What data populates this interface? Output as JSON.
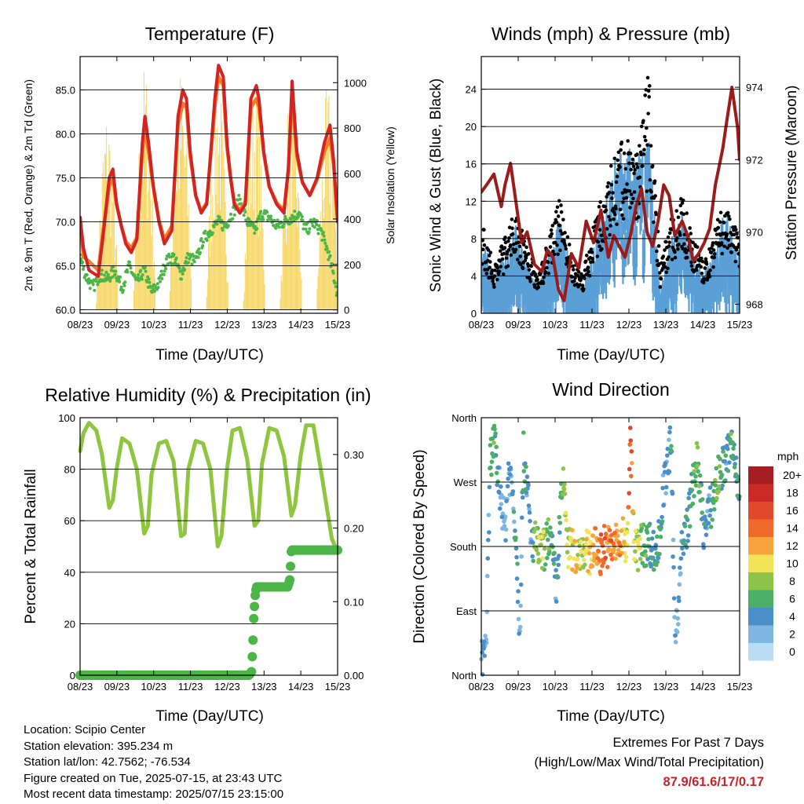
{
  "panels": {
    "temperature": {
      "title": "Temperature (F)",
      "ylabel_left": "2m & 9m T (Red, Orange) & 2m Td (Green)",
      "ylabel_right": "Solar Insolation (Yellow)",
      "xlabel": "Time (Day/UTC)"
    },
    "winds": {
      "title": "Winds (mph) & Pressure (mb)",
      "ylabel_left": "Sonic Wind & Gust (Blue, Black)",
      "ylabel_right": "Station Pressure (Maroon)",
      "xlabel": "Time (Day/UTC)"
    },
    "humidity": {
      "title": "Relative Humidity (%) & Precipitation (in)",
      "ylabel_left": "Percent & Total Rainfall",
      "xlabel": "Time (Day/UTC)"
    },
    "direction": {
      "title": "Wind Direction",
      "ylabel_left": "Direction (Colored By Speed)",
      "xlabel": "Time (Day/UTC)",
      "colorbar_title": "mph"
    }
  },
  "info": {
    "location": "Location: Scipio Center",
    "elevation": "Station elevation: 395.234 m",
    "latlon": "Station lat/lon: 42.7562; -76.534",
    "created": "Figure created on Tue, 2025-07-15, at 23:43 UTC",
    "recent": "Most recent data timestamp: 2025/07/15 23:15:00"
  },
  "extremes": {
    "line1": "Extremes For Past 7 Days",
    "line2": "(High/Low/Max Wind/Total Precipitation)",
    "values": "87.9/61.6/17/0.17"
  },
  "colors": {
    "temp_2m": "#d42323",
    "temp_9m": "#f27b26",
    "dewpoint": "#4cb548",
    "solar": "#f6d766",
    "wind": "#5aa0d6",
    "gust": "#000000",
    "pressure": "#9c1b1b",
    "rh": "#8ec63f",
    "precip": "#4cb548"
  },
  "chart_data": [
    {
      "type": "line",
      "name": "temperature",
      "x_ticks": [
        "08/23",
        "09/23",
        "10/23",
        "11/23",
        "12/23",
        "13/23",
        "14/23",
        "15/23"
      ],
      "x_range_days": [
        8.958,
        15.958
      ],
      "y_left": {
        "range": [
          59.6,
          88.8
        ],
        "ticks": [
          "60.0",
          "65.0",
          "70.0",
          "75.0",
          "80.0",
          "85.0"
        ]
      },
      "y_right": {
        "range": [
          -15,
          1115
        ],
        "ticks": [
          "0",
          "200",
          "400",
          "600",
          "800",
          "1000"
        ]
      },
      "series": [
        {
          "key": "temp_2m",
          "axis": "left",
          "x": [
            8.958,
            9.05,
            9.2,
            9.45,
            9.6,
            9.75,
            9.85,
            9.95,
            10.08,
            10.2,
            10.35,
            10.5,
            10.65,
            10.72,
            10.82,
            10.95,
            11.1,
            11.25,
            11.45,
            11.62,
            11.75,
            11.85,
            11.95,
            12.1,
            12.25,
            12.4,
            12.62,
            12.72,
            12.85,
            12.95,
            13.05,
            13.15,
            13.3,
            13.45,
            13.6,
            13.75,
            13.82,
            13.95,
            14.1,
            14.3,
            14.5,
            14.62,
            14.72,
            14.85,
            15.0,
            15.2,
            15.4,
            15.6,
            15.75,
            15.85,
            15.958
          ],
          "y": [
            70.5,
            67.0,
            64.5,
            63.8,
            69.0,
            75.0,
            76.0,
            72.0,
            69.5,
            67.5,
            66.5,
            68.0,
            79.0,
            82.0,
            79.0,
            74.0,
            70.0,
            67.5,
            69.0,
            82.0,
            85.0,
            84.0,
            78.0,
            73.0,
            71.0,
            72.0,
            84.0,
            87.8,
            86.5,
            79.0,
            75.0,
            72.0,
            71.0,
            72.0,
            84.0,
            85.5,
            84.0,
            78.0,
            74.0,
            72.0,
            71.0,
            76.0,
            86.0,
            78.0,
            74.5,
            73.0,
            75.0,
            79.0,
            81.0,
            77.0,
            70.0
          ]
        },
        {
          "key": "temp_9m",
          "axis": "left",
          "x": [
            8.958,
            9.05,
            9.2,
            9.45,
            9.6,
            9.75,
            9.85,
            9.95,
            10.08,
            10.2,
            10.35,
            10.5,
            10.65,
            10.72,
            10.82,
            10.95,
            11.1,
            11.25,
            11.45,
            11.62,
            11.75,
            11.85,
            11.95,
            12.1,
            12.25,
            12.4,
            12.62,
            12.72,
            12.85,
            12.95,
            13.05,
            13.15,
            13.3,
            13.45,
            13.6,
            13.75,
            13.82,
            13.95,
            14.1,
            14.3,
            14.5,
            14.62,
            14.72,
            14.85,
            15.0,
            15.2,
            15.4,
            15.6,
            15.75,
            15.85,
            15.958
          ],
          "y": [
            70.5,
            66.0,
            65.5,
            64.5,
            69.5,
            74.0,
            75.0,
            72.0,
            69.5,
            67.8,
            67.0,
            68.2,
            78.0,
            80.5,
            78.0,
            74.0,
            70.2,
            68.0,
            69.5,
            81.0,
            83.5,
            83.0,
            77.5,
            73.0,
            71.2,
            72.2,
            83.0,
            86.5,
            85.5,
            78.5,
            75.0,
            72.2,
            71.3,
            72.3,
            83.0,
            84.0,
            83.0,
            77.8,
            74.0,
            72.2,
            71.3,
            76.0,
            84.5,
            77.5,
            74.5,
            73.0,
            74.8,
            78.0,
            79.5,
            76.5,
            70.0
          ]
        },
        {
          "key": "dewpoint",
          "axis": "left",
          "x": [
            8.958,
            9.1,
            9.3,
            9.5,
            9.7,
            9.9,
            10.1,
            10.3,
            10.5,
            10.7,
            10.9,
            11.1,
            11.3,
            11.5,
            11.7,
            11.9,
            12.1,
            12.3,
            12.5,
            12.7,
            12.9,
            13.1,
            13.3,
            13.5,
            13.7,
            13.9,
            14.1,
            14.3,
            14.5,
            14.7,
            14.9,
            15.1,
            15.3,
            15.5,
            15.7,
            15.9,
            15.958
          ],
          "y": [
            66.0,
            64.0,
            62.5,
            64.0,
            63.5,
            64.5,
            62.5,
            65.0,
            63.0,
            64.5,
            62.0,
            63.0,
            65.5,
            66.0,
            64.0,
            66.0,
            65.5,
            68.0,
            69.0,
            70.0,
            69.5,
            71.0,
            72.5,
            70.0,
            69.0,
            71.0,
            70.5,
            69.5,
            70.0,
            70.5,
            71.0,
            69.0,
            70.0,
            69.0,
            66.5,
            63.0,
            61.5
          ]
        },
        {
          "key": "solar",
          "axis": "right",
          "description": "daily insolation cycles peaking near local noon",
          "daily_peak_days": [
            9.7,
            10.72,
            11.7,
            12.7,
            13.7,
            14.7,
            15.7
          ],
          "daily_peak_values": [
            920,
            1100,
            1090,
            1060,
            1040,
            1010,
            1000
          ]
        }
      ]
    },
    {
      "type": "scatter",
      "name": "winds",
      "x_ticks": [
        "08/23",
        "09/23",
        "10/23",
        "11/23",
        "12/23",
        "13/23",
        "14/23",
        "15/23"
      ],
      "x_range_days": [
        8.958,
        15.958
      ],
      "y_left": {
        "range": [
          0,
          27.5
        ],
        "ticks": [
          "0",
          "4",
          "8",
          "12",
          "16",
          "20",
          "24"
        ]
      },
      "y_right": {
        "range": [
          967.75,
          974.85
        ],
        "ticks": [
          "968",
          "970",
          "972",
          "974"
        ]
      },
      "series": [
        {
          "key": "wind",
          "axis": "left",
          "x": [
            9.0,
            9.3,
            9.6,
            9.9,
            10.2,
            10.5,
            10.8,
            11.1,
            11.4,
            11.7,
            12.0,
            12.3,
            12.6,
            12.9,
            13.2,
            13.5,
            13.8,
            14.1,
            14.4,
            14.7,
            15.0,
            15.3,
            15.6,
            15.9
          ],
          "y": [
            6,
            3,
            5,
            7,
            4,
            2,
            5,
            8,
            3,
            2,
            5,
            9,
            12,
            13,
            12,
            14,
            2,
            6,
            8,
            5,
            3,
            6,
            8,
            5
          ]
        },
        {
          "key": "gust",
          "axis": "left",
          "x": [
            9.0,
            9.3,
            9.6,
            9.9,
            10.2,
            10.5,
            10.8,
            11.1,
            11.4,
            11.7,
            12.0,
            12.3,
            12.6,
            12.9,
            13.2,
            13.5,
            13.8,
            14.1,
            14.4,
            14.7,
            15.0,
            15.3,
            15.6,
            15.9
          ],
          "y": [
            9,
            5,
            8,
            11,
            7,
            4,
            8,
            12,
            6,
            4,
            9,
            13,
            17,
            18,
            17,
            25,
            5,
            10,
            12,
            8,
            5,
            9,
            12,
            8
          ]
        },
        {
          "key": "pressure",
          "axis": "right",
          "x": [
            8.958,
            9.1,
            9.3,
            9.5,
            9.6,
            9.75,
            9.9,
            10.05,
            10.2,
            10.4,
            10.6,
            10.75,
            10.9,
            11.05,
            11.2,
            11.4,
            11.6,
            11.8,
            12.0,
            12.2,
            12.4,
            12.55,
            12.7,
            12.85,
            13.0,
            13.15,
            13.3,
            13.45,
            13.6,
            13.75,
            13.9,
            14.05,
            14.2,
            14.4,
            14.55,
            14.7,
            14.85,
            15.0,
            15.15,
            15.3,
            15.5,
            15.6,
            15.75,
            15.9,
            15.958
          ],
          "y": [
            971.1,
            971.3,
            971.6,
            970.7,
            971.3,
            971.9,
            970.8,
            969.7,
            970.0,
            969.1,
            968.9,
            969.5,
            969.3,
            968.4,
            968.1,
            969.4,
            969.0,
            970.3,
            969.7,
            970.6,
            969.3,
            969.9,
            969.6,
            969.3,
            969.9,
            970.7,
            971.2,
            970.0,
            969.6,
            970.3,
            971.3,
            971.0,
            969.9,
            970.3,
            969.9,
            969.2,
            969.4,
            969.7,
            970.1,
            971.3,
            972.3,
            973.0,
            974.0,
            972.9,
            972.0
          ]
        }
      ]
    },
    {
      "type": "line",
      "name": "humidity",
      "x_ticks": [
        "08/23",
        "09/23",
        "10/23",
        "11/23",
        "12/23",
        "13/23",
        "14/23",
        "15/23"
      ],
      "x_range_days": [
        8.958,
        15.958
      ],
      "y_left": {
        "range": [
          0,
          100
        ],
        "ticks": [
          "0",
          "20",
          "40",
          "60",
          "80",
          "100"
        ]
      },
      "y_right": {
        "range": [
          0,
          0.35
        ],
        "ticks": [
          "0.00",
          "0.10",
          "0.20",
          "0.30"
        ]
      },
      "series": [
        {
          "key": "rh",
          "axis": "left",
          "x": [
            8.958,
            9.05,
            9.2,
            9.4,
            9.55,
            9.75,
            9.85,
            9.95,
            10.1,
            10.3,
            10.5,
            10.7,
            10.8,
            10.9,
            11.1,
            11.3,
            11.5,
            11.7,
            11.8,
            11.9,
            12.1,
            12.3,
            12.5,
            12.7,
            12.8,
            12.95,
            13.1,
            13.3,
            13.5,
            13.7,
            13.8,
            13.9,
            14.1,
            14.3,
            14.5,
            14.7,
            14.8,
            14.95,
            15.1,
            15.3,
            15.5,
            15.7,
            15.8,
            15.958
          ],
          "y": [
            87,
            94,
            98,
            95,
            86,
            65,
            68,
            80,
            92,
            90,
            80,
            55,
            58,
            78,
            90,
            91,
            83,
            54,
            55,
            80,
            91,
            90,
            80,
            50,
            54,
            80,
            95,
            96,
            84,
            58,
            60,
            82,
            96,
            95,
            85,
            62,
            66,
            85,
            97,
            97,
            80,
            62,
            53,
            48
          ]
        },
        {
          "key": "precip",
          "axis": "right",
          "x": [
            8.958,
            9.6,
            10.5,
            11.5,
            12.5,
            13.55,
            13.62,
            13.66,
            13.68,
            13.72,
            13.75,
            13.8,
            14.2,
            14.6,
            14.66,
            14.7,
            15.0,
            15.5,
            15.958
          ],
          "y": [
            0.0,
            0.0,
            0.0,
            0.0,
            0.0,
            0.0,
            0.005,
            0.05,
            0.08,
            0.11,
            0.12,
            0.12,
            0.12,
            0.12,
            0.13,
            0.17,
            0.17,
            0.17,
            0.17
          ]
        }
      ]
    },
    {
      "type": "scatter",
      "name": "wind_direction",
      "x_ticks": [
        "08/23",
        "09/23",
        "10/23",
        "11/23",
        "12/23",
        "13/23",
        "14/23",
        "15/23"
      ],
      "x_range_days": [
        8.958,
        15.958
      ],
      "y_ticks": [
        "North",
        "East",
        "South",
        "West",
        "North"
      ],
      "y_range_deg": [
        0,
        360
      ],
      "colorbar": {
        "title": "mph",
        "labels": [
          "20+",
          "18",
          "16",
          "14",
          "12",
          "10",
          "8",
          "6",
          "4",
          "2",
          "0"
        ],
        "colors": [
          "#a51f22",
          "#cc2a27",
          "#e04a2b",
          "#f06a2b",
          "#f7a43f",
          "#f2e458",
          "#8cc34b",
          "#4caf67",
          "#4a8fc8",
          "#7eb7e2",
          "#b9def4"
        ]
      },
      "points": {
        "x": [
          9.0,
          9.1,
          9.2,
          9.3,
          9.4,
          9.5,
          9.6,
          9.7,
          9.8,
          9.9,
          10.0,
          10.1,
          10.2,
          10.3,
          10.4,
          10.5,
          10.6,
          10.7,
          10.8,
          10.9,
          11.0,
          11.1,
          11.2,
          11.3,
          11.4,
          11.5,
          11.6,
          11.7,
          11.8,
          11.9,
          12.0,
          12.1,
          12.2,
          12.3,
          12.4,
          12.5,
          12.6,
          12.7,
          12.8,
          12.9,
          13.0,
          13.1,
          13.2,
          13.3,
          13.4,
          13.5,
          13.6,
          13.7,
          13.8,
          13.9,
          14.0,
          14.1,
          14.2,
          14.3,
          14.4,
          14.5,
          14.6,
          14.7,
          14.8,
          14.9,
          15.0,
          15.1,
          15.2,
          15.3,
          15.4,
          15.5,
          15.6,
          15.7,
          15.8,
          15.9
        ],
        "direction_deg": [
          20,
          60,
          300,
          330,
          280,
          250,
          200,
          290,
          260,
          190,
          60,
          310,
          270,
          180,
          190,
          175,
          170,
          180,
          200,
          160,
          120,
          230,
          270,
          175,
          180,
          165,
          170,
          180,
          175,
          170,
          180,
          175,
          170,
          185,
          180,
          175,
          185,
          180,
          190,
          180,
          330,
          180,
          175,
          185,
          180,
          190,
          175,
          170,
          200,
          260,
          290,
          330,
          60,
          100,
          180,
          200,
          230,
          270,
          300,
          250,
          200,
          220,
          240,
          260,
          280,
          290,
          300,
          320,
          310,
          270
        ],
        "speed_mph": [
          3,
          2,
          5,
          6,
          4,
          3,
          2,
          4,
          3,
          5,
          2,
          6,
          4,
          3,
          7,
          8,
          9,
          6,
          7,
          5,
          4,
          6,
          8,
          9,
          10,
          11,
          9,
          8,
          10,
          12,
          11,
          13,
          14,
          15,
          13,
          14,
          12,
          13,
          11,
          10,
          17,
          8,
          9,
          7,
          6,
          5,
          4,
          5,
          6,
          4,
          3,
          5,
          2,
          3,
          4,
          5,
          4,
          6,
          7,
          5,
          4,
          3,
          5,
          6,
          7,
          5,
          4,
          6,
          5,
          4
        ]
      }
    }
  ]
}
